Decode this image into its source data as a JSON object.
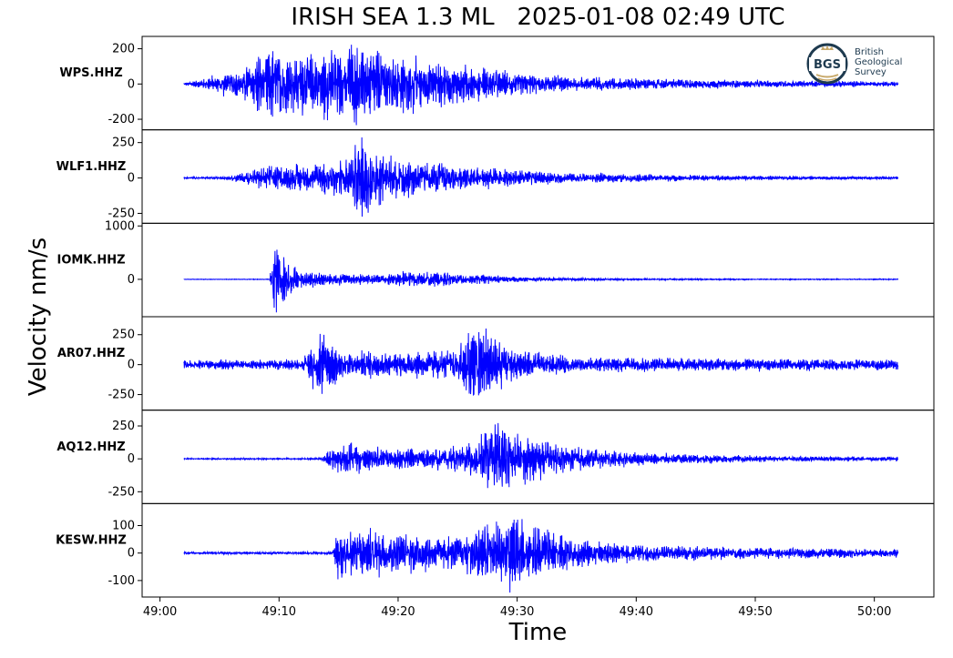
{
  "title": "IRISH SEA 1.3 ML   2025-01-08 02:49 UTC",
  "ylabel": "Velocity nm/s",
  "xlabel": "Time",
  "logo": {
    "mark": "BGS",
    "lines": [
      "British",
      "Geological",
      "Survey"
    ]
  },
  "colors": {
    "trace": "#0000ff",
    "axes": "#000000",
    "logo": "#1e3a4f",
    "logo_accent": "#c8a96a"
  },
  "chart_data": {
    "type": "line",
    "x_unit": "seconds after 02:49:00 UTC",
    "xlim": [
      -1.5,
      65
    ],
    "x_ticks": [
      0,
      10,
      20,
      30,
      40,
      50,
      60
    ],
    "x_tick_labels": [
      "49:00",
      "49:10",
      "49:20",
      "49:30",
      "49:40",
      "49:50",
      "50:00"
    ],
    "trace_start": 2,
    "trace_end": 62,
    "grid": false,
    "panels": [
      {
        "station": "WPS.HHZ",
        "ylim": [
          -260,
          270
        ],
        "yticks": [
          200,
          0,
          -200
        ],
        "ytick_labels": [
          "200",
          "0",
          "-200"
        ],
        "noise": 6,
        "envelope": [
          [
            2,
            6
          ],
          [
            7,
            90
          ],
          [
            8,
            160
          ],
          [
            9,
            210
          ],
          [
            12,
            170
          ],
          [
            15,
            200
          ],
          [
            16.5,
            240
          ],
          [
            19,
            190
          ],
          [
            22,
            150
          ],
          [
            25,
            110
          ],
          [
            30,
            60
          ],
          [
            35,
            40
          ],
          [
            45,
            25
          ],
          [
            55,
            18
          ],
          [
            62,
            14
          ]
        ]
      },
      {
        "station": "WLF1.HHZ",
        "ylim": [
          -320,
          340
        ],
        "yticks": [
          250,
          0,
          -250
        ],
        "ytick_labels": [
          "250",
          "0",
          "-250"
        ],
        "noise": 6,
        "envelope": [
          [
            2,
            6
          ],
          [
            5.5,
            8
          ],
          [
            7,
            40
          ],
          [
            9,
            90
          ],
          [
            13,
            100
          ],
          [
            16,
            150
          ],
          [
            16.8,
            330
          ],
          [
            18,
            240
          ],
          [
            20,
            150
          ],
          [
            25,
            90
          ],
          [
            30,
            55
          ],
          [
            35,
            35
          ],
          [
            45,
            20
          ],
          [
            55,
            12
          ],
          [
            62,
            10
          ]
        ]
      },
      {
        "station": "IOMK.HHZ",
        "ylim": [
          -700,
          1050
        ],
        "yticks": [
          1000,
          0
        ],
        "ytick_labels": [
          "1000",
          "0"
        ],
        "noise": 5,
        "envelope": [
          [
            2,
            5
          ],
          [
            9.2,
            6
          ],
          [
            9.6,
            930
          ],
          [
            10.2,
            450
          ],
          [
            11.5,
            200
          ],
          [
            14,
            110
          ],
          [
            18,
            90
          ],
          [
            21,
            150
          ],
          [
            24,
            130
          ],
          [
            27,
            90
          ],
          [
            31,
            35
          ],
          [
            40,
            15
          ],
          [
            50,
            10
          ],
          [
            62,
            8
          ]
        ]
      },
      {
        "station": "AR07.HHZ",
        "ylim": [
          -380,
          400
        ],
        "yticks": [
          250,
          0,
          -250
        ],
        "ytick_labels": [
          "250",
          "0",
          "-250"
        ],
        "noise": 40,
        "envelope": [
          [
            2,
            40
          ],
          [
            12,
            45
          ],
          [
            13.5,
            290
          ],
          [
            15,
            120
          ],
          [
            20,
            100
          ],
          [
            25,
            130
          ],
          [
            26,
            380
          ],
          [
            28,
            260
          ],
          [
            30,
            120
          ],
          [
            35,
            60
          ],
          [
            62,
            45
          ]
        ]
      },
      {
        "station": "AQ12.HHZ",
        "ylim": [
          -340,
          370
        ],
        "yticks": [
          250,
          0,
          -250
        ],
        "ytick_labels": [
          "250",
          "0",
          "-250"
        ],
        "noise": 5,
        "envelope": [
          [
            2,
            5
          ],
          [
            13.5,
            6
          ],
          [
            14.5,
            90
          ],
          [
            16,
            130
          ],
          [
            19,
            90
          ],
          [
            23,
            70
          ],
          [
            26,
            120
          ],
          [
            28.5,
            300
          ],
          [
            30,
            200
          ],
          [
            35,
            100
          ],
          [
            40,
            45
          ],
          [
            50,
            25
          ],
          [
            62,
            15
          ]
        ]
      },
      {
        "station": "KESW.HHZ",
        "ylim": [
          -160,
          180
        ],
        "yticks": [
          100,
          0,
          -100
        ],
        "ytick_labels": [
          "100",
          "0",
          "-100"
        ],
        "noise": 4,
        "envelope": [
          [
            2,
            4
          ],
          [
            14.5,
            5
          ],
          [
            15,
            110
          ],
          [
            16.5,
            95
          ],
          [
            20,
            70
          ],
          [
            25,
            60
          ],
          [
            28,
            120
          ],
          [
            29.5,
            150
          ],
          [
            31,
            100
          ],
          [
            35,
            50
          ],
          [
            40,
            30
          ],
          [
            50,
            20
          ],
          [
            62,
            15
          ]
        ]
      }
    ]
  }
}
